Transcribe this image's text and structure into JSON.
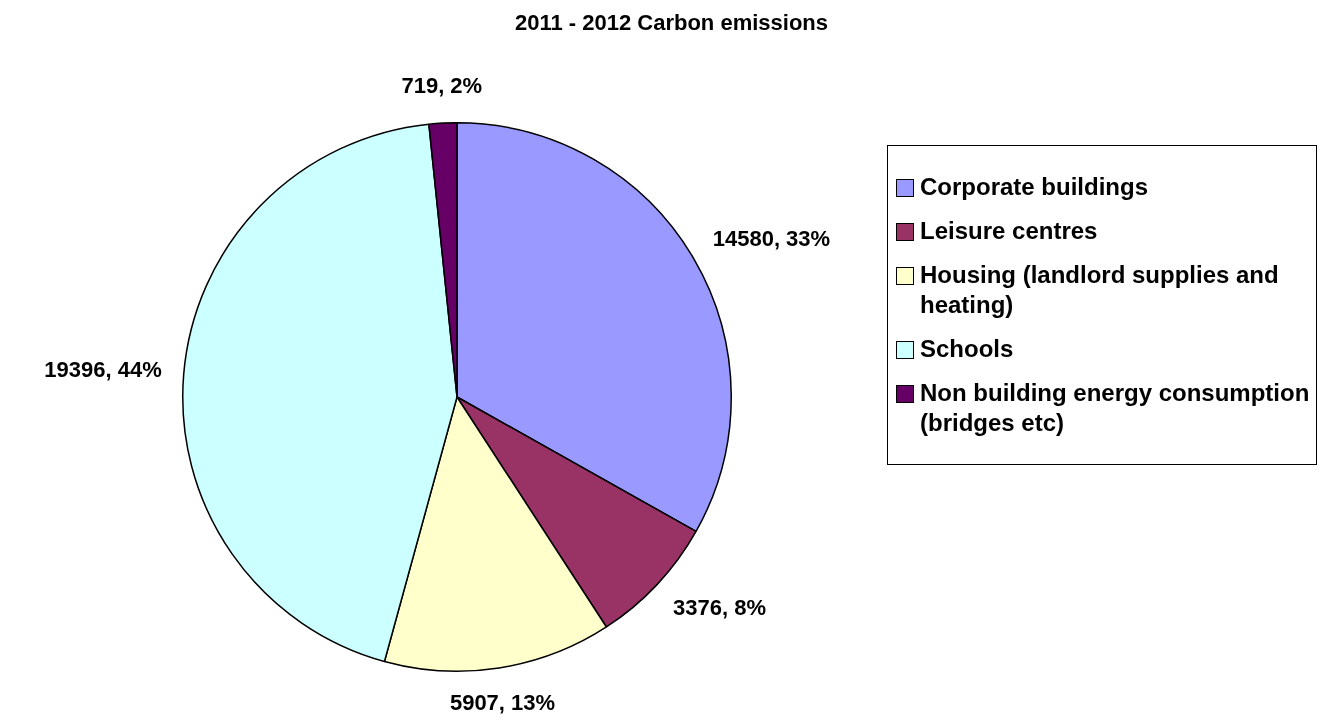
{
  "chart_data": {
    "type": "pie",
    "title": "2011 - 2012 Carbon emissions",
    "categories": [
      "Corporate buildings",
      "Leisure centres",
      "Housing (landlord supplies and heating)",
      "Schools",
      "Non building energy consumption (bridges etc)"
    ],
    "values": [
      14580,
      3376,
      5907,
      19396,
      719
    ],
    "value_labels": [
      "14580, 33%",
      "3376, 8%",
      "5907, 13%",
      "19396, 44%",
      "719, 2%"
    ],
    "colors": [
      "#9999ff",
      "#993366",
      "#ffffcc",
      "#ccffff",
      "#660066"
    ],
    "legend": "right"
  }
}
